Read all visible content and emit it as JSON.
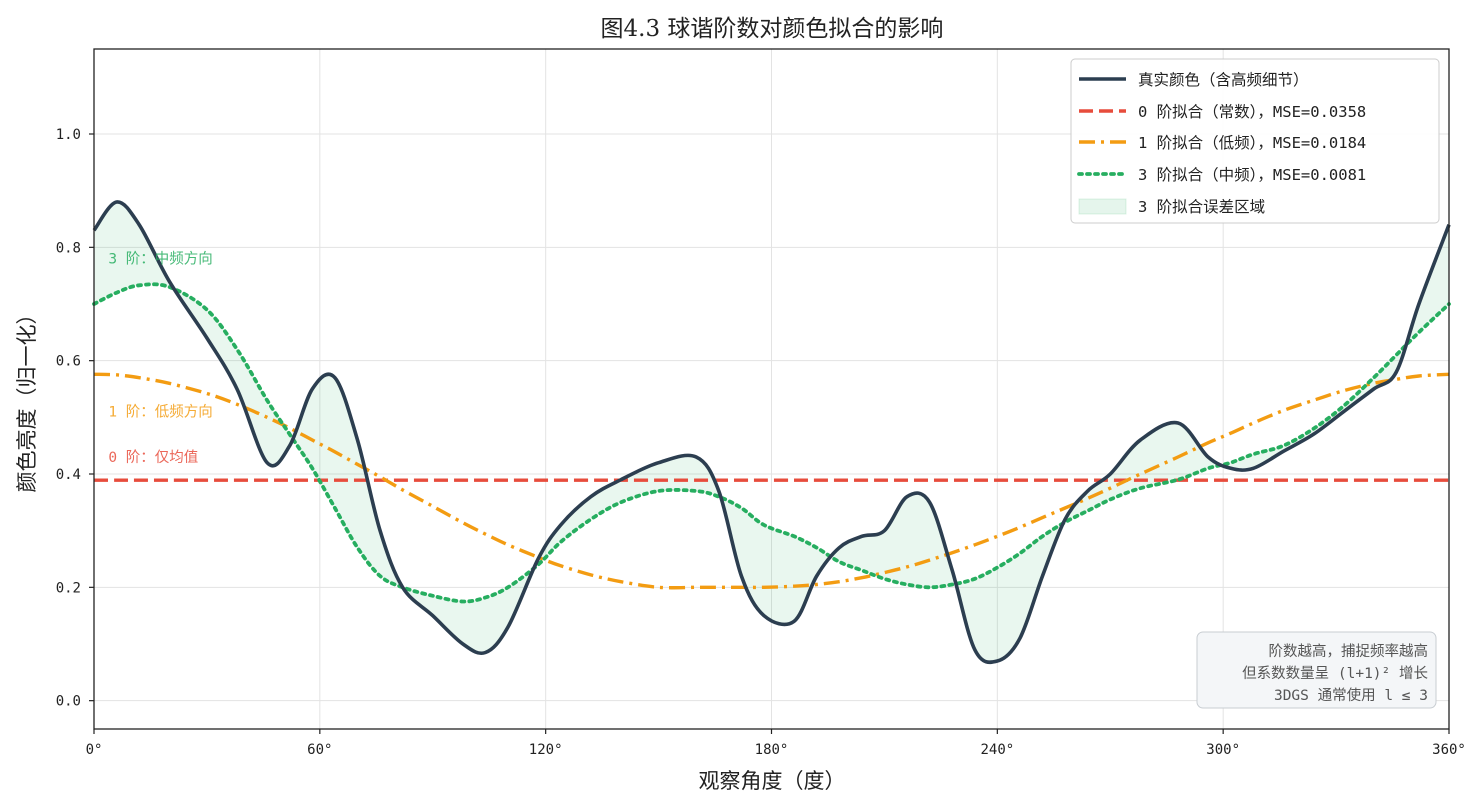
{
  "chart_data": {
    "type": "line",
    "title": "图4.3  球谐阶数对颜色拟合的影响",
    "xlabel": "观察角度（度）",
    "ylabel": "颜色亮度（归一化）",
    "xlim": [
      0,
      360
    ],
    "ylim": [
      -0.05,
      1.15
    ],
    "xticks": [
      0,
      60,
      120,
      180,
      240,
      300,
      360
    ],
    "xtick_labels": [
      "0°",
      "60°",
      "120°",
      "180°",
      "240°",
      "300°",
      "360°"
    ],
    "yticks": [
      0.0,
      0.2,
      0.4,
      0.6,
      0.8,
      1.0
    ],
    "ytick_labels": [
      "0.0",
      "0.2",
      "0.4",
      "0.6",
      "0.8",
      "1.0"
    ],
    "grid": true,
    "legend_position": "top-right",
    "x": [
      0,
      6,
      12,
      20,
      30,
      38,
      46,
      52,
      58,
      64,
      70,
      76,
      82,
      90,
      98,
      104,
      110,
      118,
      124,
      132,
      140,
      150,
      160,
      166,
      172,
      178,
      186,
      192,
      198,
      204,
      210,
      216,
      222,
      228,
      234,
      240,
      246,
      252,
      258,
      264,
      270,
      278,
      288,
      296,
      302,
      308,
      316,
      324,
      332,
      340,
      346,
      352,
      360
    ],
    "series": [
      {
        "name": "真实颜色（含高频细节）",
        "color": "#2c3e50",
        "style": "solid",
        "values": [
          0.83,
          0.88,
          0.84,
          0.74,
          0.64,
          0.55,
          0.42,
          0.45,
          0.55,
          0.57,
          0.46,
          0.3,
          0.2,
          0.15,
          0.1,
          0.085,
          0.13,
          0.25,
          0.31,
          0.36,
          0.39,
          0.42,
          0.43,
          0.37,
          0.22,
          0.15,
          0.14,
          0.22,
          0.27,
          0.29,
          0.3,
          0.36,
          0.35,
          0.23,
          0.09,
          0.07,
          0.11,
          0.22,
          0.32,
          0.37,
          0.4,
          0.46,
          0.49,
          0.43,
          0.41,
          0.41,
          0.44,
          0.47,
          0.51,
          0.55,
          0.58,
          0.7,
          0.84
        ]
      },
      {
        "name": "0 阶拟合（常数），MSE=0.0358",
        "color": "#e74c3c",
        "style": "dashed",
        "values": [
          0.389,
          0.389,
          0.389,
          0.389,
          0.389,
          0.389,
          0.389,
          0.389,
          0.389,
          0.389,
          0.389,
          0.389,
          0.389,
          0.389,
          0.389,
          0.389,
          0.389,
          0.389,
          0.389,
          0.389,
          0.389,
          0.389,
          0.389,
          0.389,
          0.389,
          0.389,
          0.389,
          0.389,
          0.389,
          0.389,
          0.389,
          0.389,
          0.389,
          0.389,
          0.389,
          0.389,
          0.389,
          0.389,
          0.389,
          0.389,
          0.389,
          0.389,
          0.389,
          0.389,
          0.389,
          0.389,
          0.389,
          0.389,
          0.389,
          0.389,
          0.389,
          0.389,
          0.389
        ]
      },
      {
        "name": "1 阶拟合（低频），MSE=0.0184",
        "color": "#f39c12",
        "style": "dashdot",
        "values": [
          0.576,
          0.575,
          0.57,
          0.56,
          0.542,
          0.523,
          0.5,
          0.481,
          0.46,
          0.439,
          0.417,
          0.395,
          0.372,
          0.343,
          0.314,
          0.294,
          0.275,
          0.253,
          0.238,
          0.222,
          0.21,
          0.2,
          0.2,
          0.2,
          0.2,
          0.2,
          0.202,
          0.205,
          0.21,
          0.217,
          0.226,
          0.236,
          0.248,
          0.261,
          0.275,
          0.29,
          0.306,
          0.323,
          0.34,
          0.357,
          0.375,
          0.4,
          0.43,
          0.455,
          0.472,
          0.49,
          0.512,
          0.53,
          0.547,
          0.56,
          0.567,
          0.573,
          0.576
        ]
      },
      {
        "name": "3 阶拟合（中频），MSE=0.0081",
        "color": "#27ae60",
        "style": "dotted",
        "values": [
          0.7,
          0.72,
          0.733,
          0.73,
          0.69,
          0.62,
          0.53,
          0.47,
          0.41,
          0.34,
          0.27,
          0.22,
          0.2,
          0.185,
          0.175,
          0.182,
          0.2,
          0.24,
          0.28,
          0.32,
          0.35,
          0.37,
          0.37,
          0.36,
          0.34,
          0.31,
          0.29,
          0.27,
          0.245,
          0.23,
          0.215,
          0.205,
          0.2,
          0.205,
          0.215,
          0.235,
          0.26,
          0.29,
          0.315,
          0.335,
          0.355,
          0.375,
          0.39,
          0.41,
          0.42,
          0.435,
          0.45,
          0.48,
          0.52,
          0.57,
          0.61,
          0.65,
          0.7
        ]
      }
    ],
    "error_band": {
      "name": "3 阶拟合误差区域",
      "color": "#27ae60",
      "between": [
        "真实颜色（含高频细节）",
        "3 阶拟合（中频），MSE=0.0081"
      ]
    },
    "annotations": [
      {
        "text": "3 阶：中频方向",
        "x": 7,
        "y": 0.78,
        "color": "#27ae60"
      },
      {
        "text": "1 阶：低频方向",
        "x": 7,
        "y": 0.51,
        "color": "#f39c12"
      },
      {
        "text": "0 阶：仅均值",
        "x": 7,
        "y": 0.43,
        "color": "#e74c3c"
      }
    ],
    "note_box": {
      "lines": [
        "阶数越高，捕捉频率越高",
        "但系数数量呈 (l+1)² 增长",
        "3DGS 通常使用 l ≤ 3"
      ],
      "position": "bottom-right"
    }
  }
}
